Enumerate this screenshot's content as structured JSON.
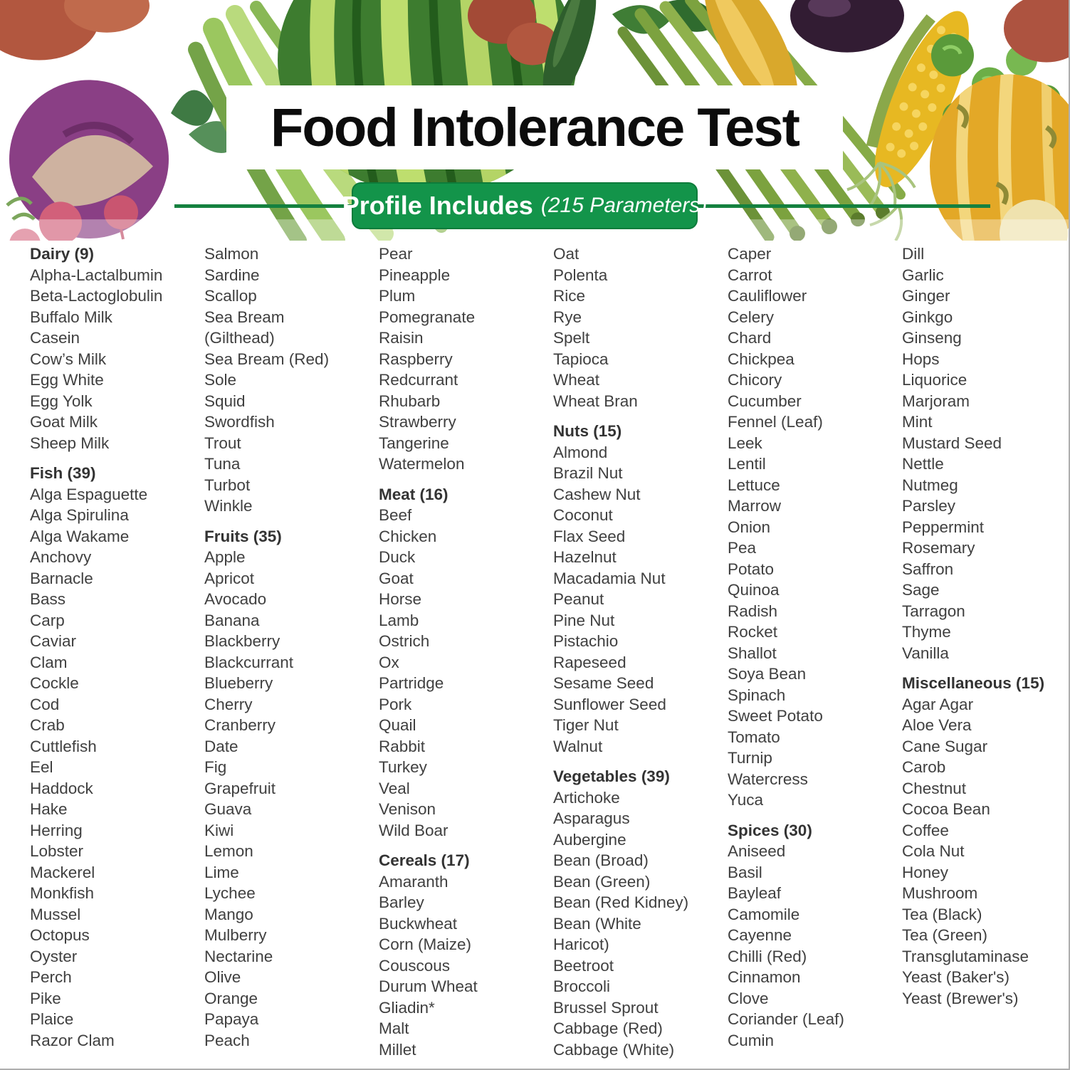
{
  "title": "Food Intolerance Test",
  "banner": {
    "label": "Profile Includes",
    "sublabel": "(215 Parameters)",
    "background_color": "#13944a",
    "rule_color": "#15813f",
    "text_color": "#ffffff"
  },
  "total_parameters": 215,
  "text_color": "#404040",
  "columns": [
    {
      "segments": [
        {
          "header": "Dairy (9)",
          "items": [
            "Alpha-Lactalbumin",
            "Beta-Lactoglobulin",
            "Buffalo Milk",
            "Casein",
            "Cow’s Milk",
            "Egg White",
            "Egg Yolk",
            "Goat Milk",
            "Sheep Milk"
          ]
        },
        {
          "header": "Fish (39)",
          "items": [
            "Alga Espaguette",
            "Alga Spirulina",
            "Alga Wakame",
            "Anchovy",
            "Barnacle",
            "Bass",
            "Carp",
            "Caviar",
            "Clam",
            "Cockle",
            "Cod",
            "Crab",
            "Cuttlefish",
            "Eel",
            "Haddock",
            "Hake",
            "Herring",
            "Lobster",
            "Mackerel",
            "Monkfish",
            "Mussel",
            "Octopus",
            "Oyster",
            "Perch",
            "Pike",
            "Plaice",
            "Razor Clam"
          ]
        }
      ]
    },
    {
      "segments": [
        {
          "header": null,
          "items": [
            "Salmon",
            "Sardine",
            "Scallop",
            "Sea Bream (Gilthead)",
            "Sea Bream (Red)",
            "Sole",
            "Squid",
            "Swordfish",
            "Trout",
            "Tuna",
            "Turbot",
            "Winkle"
          ]
        },
        {
          "header": "Fruits (35)",
          "items": [
            "Apple",
            "Apricot",
            "Avocado",
            "Banana",
            "Blackberry",
            "Blackcurrant",
            "Blueberry",
            "Cherry",
            "Cranberry",
            "Date",
            "Fig",
            "Grapefruit",
            "Guava",
            "Kiwi",
            "Lemon",
            "Lime",
            "Lychee",
            "Mango",
            "Mulberry",
            "Nectarine",
            "Olive",
            "Orange",
            "Papaya",
            "Peach"
          ]
        }
      ]
    },
    {
      "segments": [
        {
          "header": null,
          "items": [
            "Pear",
            "Pineapple",
            "Plum",
            "Pomegranate",
            "Raisin",
            "Raspberry",
            "Redcurrant",
            "Rhubarb",
            "Strawberry",
            "Tangerine",
            "Watermelon"
          ]
        },
        {
          "header": "Meat (16)",
          "items": [
            "Beef",
            "Chicken",
            "Duck",
            "Goat",
            "Horse",
            "Lamb",
            "Ostrich",
            "Ox",
            "Partridge",
            "Pork",
            "Quail",
            "Rabbit",
            "Turkey",
            "Veal",
            "Venison",
            "Wild Boar"
          ]
        },
        {
          "header": "Cereals (17)",
          "items": [
            "Amaranth",
            "Barley",
            "Buckwheat",
            "Corn (Maize)",
            "Couscous",
            "Durum Wheat",
            "Gliadin*",
            "Malt",
            "Millet"
          ]
        }
      ]
    },
    {
      "segments": [
        {
          "header": null,
          "items": [
            "Oat",
            "Polenta",
            "Rice",
            "Rye",
            "Spelt",
            "Tapioca",
            "Wheat",
            "Wheat Bran"
          ]
        },
        {
          "header": "Nuts (15)",
          "items": [
            "Almond",
            "Brazil Nut",
            "Cashew Nut",
            "Coconut",
            "Flax Seed",
            "Hazelnut",
            "Macadamia Nut",
            "Peanut",
            "Pine Nut",
            "Pistachio",
            "Rapeseed",
            "Sesame Seed",
            "Sunflower Seed",
            "Tiger Nut",
            "Walnut"
          ]
        },
        {
          "header": "Vegetables (39)",
          "items": [
            "Artichoke",
            "Asparagus",
            "Aubergine",
            "Bean (Broad)",
            "Bean (Green)",
            "Bean (Red Kidney)",
            "Bean (White Haricot)",
            "Beetroot",
            "Broccoli",
            "Brussel Sprout",
            "Cabbage (Red)",
            "Cabbage (White)"
          ]
        }
      ]
    },
    {
      "segments": [
        {
          "header": null,
          "items": [
            "Caper",
            "Carrot",
            "Cauliflower",
            "Celery",
            "Chard",
            "Chickpea",
            "Chicory",
            "Cucumber",
            "Fennel (Leaf)",
            "Leek",
            "Lentil",
            "Lettuce",
            "Marrow",
            "Onion",
            "Pea",
            "Potato",
            "Quinoa",
            "Radish",
            "Rocket",
            "Shallot",
            "Soya Bean",
            "Spinach",
            "Sweet Potato",
            "Tomato",
            "Turnip",
            "Watercress",
            "Yuca"
          ]
        },
        {
          "header": "Spices (30)",
          "items": [
            "Aniseed",
            "Basil",
            "Bayleaf",
            "Camomile",
            "Cayenne",
            "Chilli (Red)",
            "Cinnamon",
            "Clove",
            "Coriander (Leaf)",
            "Cumin"
          ]
        }
      ]
    },
    {
      "segments": [
        {
          "header": null,
          "items": [
            "Dill",
            "Garlic",
            "Ginger",
            "Ginkgo",
            "Ginseng",
            "Hops",
            "Liquorice",
            "Marjoram",
            "Mint",
            "Mustard Seed",
            "Nettle",
            "Nutmeg",
            "Parsley",
            "Peppermint",
            "Rosemary",
            "Saffron",
            "Sage",
            "Tarragon",
            "Thyme",
            "Vanilla"
          ]
        },
        {
          "header": "Miscellaneous (15)",
          "items": [
            "Agar Agar",
            "Aloe Vera",
            "Cane Sugar",
            "Carob",
            "Chestnut",
            "Cocoa Bean",
            "Coffee",
            "Cola Nut",
            "Honey",
            "Mushroom",
            "Tea (Black)",
            "Tea (Green)",
            "Transglutaminase",
            "Yeast (Baker's)",
            "Yeast (Brewer's)"
          ]
        }
      ]
    }
  ]
}
